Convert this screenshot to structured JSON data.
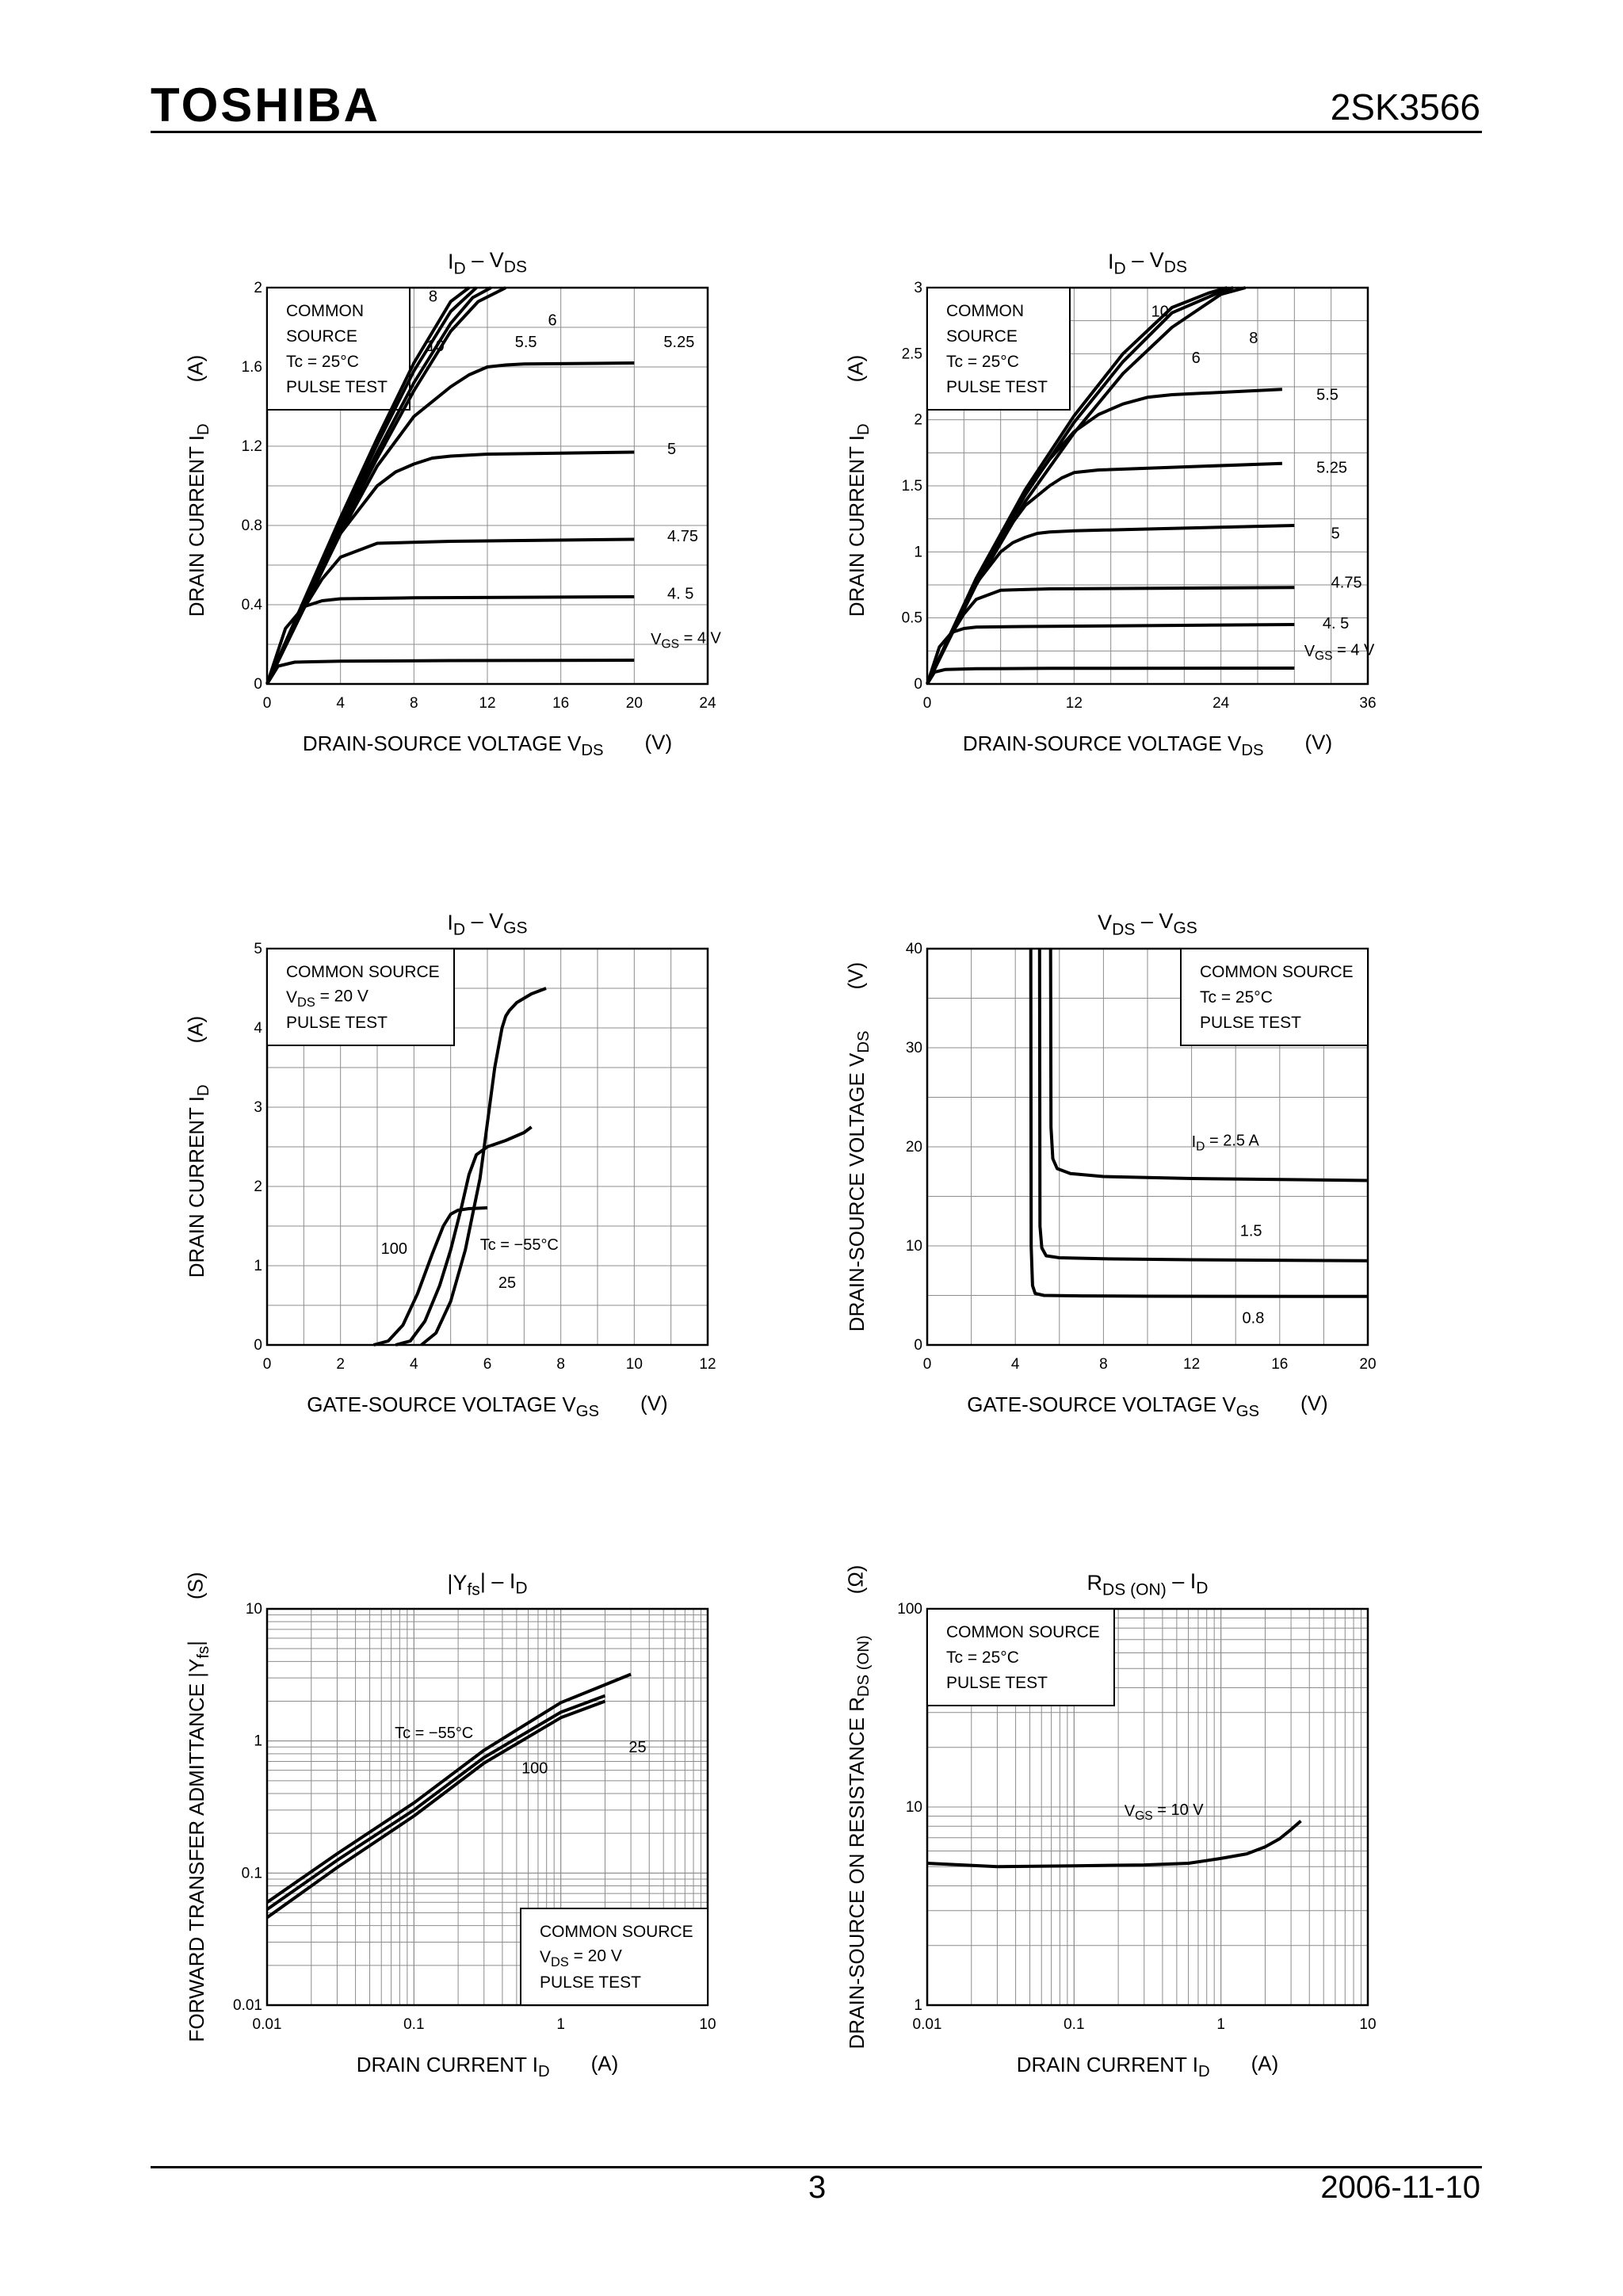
{
  "header": {
    "brand": "TOSHIBA",
    "part_number": "2SK3566"
  },
  "footer": {
    "page_number": "3",
    "date": "2006-11-10"
  },
  "chart_data": [
    {
      "id": "c1",
      "type": "line",
      "title": "I_D – V_DS",
      "xlabel": "DRAIN-SOURCE VOLTAGE V_DS (V)",
      "ylabel": "DRAIN CURRENT I_D (A)",
      "x_scale": "linear",
      "y_scale": "linear",
      "xlim": [
        0,
        24
      ],
      "ylim": [
        0,
        2
      ],
      "x_ticks": [
        0,
        4,
        8,
        12,
        16,
        20,
        24
      ],
      "y_ticks": [
        0,
        0.4,
        0.8,
        1.2,
        1.6,
        2
      ],
      "x_tick_labels": [
        "0",
        "4",
        "8",
        "12",
        "16",
        "20",
        "24"
      ],
      "y_tick_labels": [
        "0",
        "0.4",
        "0.8",
        "1.2",
        "1.6",
        "2"
      ],
      "grid": true,
      "legend_box": {
        "lines": [
          "COMMON",
          "SOURCE",
          "Tc = 25°C",
          "PULSE TEST"
        ],
        "placement": "top-left"
      },
      "series": [
        {
          "label": "V_GS = 4 V",
          "x": [
            0,
            0.6,
            1.5,
            4,
            10,
            20
          ],
          "y": [
            0,
            0.09,
            0.11,
            0.115,
            0.118,
            0.12
          ]
        },
        {
          "label": "4.5",
          "x": [
            0,
            1,
            2,
            3,
            4,
            8,
            20
          ],
          "y": [
            0,
            0.28,
            0.39,
            0.42,
            0.43,
            0.435,
            0.44
          ]
        },
        {
          "label": "4.75",
          "x": [
            0,
            1,
            2,
            3,
            4,
            6,
            10,
            20
          ],
          "y": [
            0,
            0.2,
            0.38,
            0.53,
            0.64,
            0.71,
            0.72,
            0.73
          ]
        },
        {
          "label": "5",
          "x": [
            0,
            2,
            4,
            6,
            7,
            8,
            9,
            10,
            12,
            20
          ],
          "y": [
            0,
            0.38,
            0.76,
            1.0,
            1.07,
            1.11,
            1.14,
            1.15,
            1.16,
            1.17
          ]
        },
        {
          "label": "5.25",
          "x": [
            0,
            2,
            4,
            6,
            8,
            10,
            11,
            12,
            13,
            14,
            20
          ],
          "y": [
            0,
            0.38,
            0.76,
            1.1,
            1.35,
            1.5,
            1.56,
            1.6,
            1.61,
            1.615,
            1.62
          ]
        },
        {
          "label": "5.5",
          "x": [
            0,
            2,
            4,
            6,
            8,
            10,
            11.5,
            13
          ],
          "y": [
            0,
            0.39,
            0.78,
            1.14,
            1.48,
            1.78,
            1.93,
            2.0
          ]
        },
        {
          "label": "6",
          "x": [
            0,
            2,
            4,
            6,
            8,
            10,
            11.2,
            12.2
          ],
          "y": [
            0,
            0.4,
            0.8,
            1.17,
            1.52,
            1.82,
            1.95,
            2.0
          ]
        },
        {
          "label": "8",
          "x": [
            0,
            2,
            4,
            6,
            8,
            10,
            11.4
          ],
          "y": [
            0,
            0.41,
            0.82,
            1.21,
            1.58,
            1.88,
            2.0
          ]
        },
        {
          "label": "10",
          "x": [
            0,
            2,
            4,
            6,
            8,
            10,
            11
          ],
          "y": [
            0,
            0.42,
            0.84,
            1.24,
            1.62,
            1.93,
            2.0
          ]
        }
      ],
      "annotations": [
        {
          "text": "8",
          "x": 8.8,
          "y": 1.93
        },
        {
          "text": "6",
          "x": 15.3,
          "y": 1.81
        },
        {
          "text": "10",
          "x": 8.7,
          "y": 1.68
        },
        {
          "text": "5.5",
          "x": 13.5,
          "y": 1.7
        },
        {
          "text": "5.25",
          "x": 21.6,
          "y": 1.7
        },
        {
          "text": "5",
          "x": 21.8,
          "y": 1.16
        },
        {
          "text": "4.75",
          "x": 21.8,
          "y": 0.72
        },
        {
          "text": "4. 5",
          "x": 21.8,
          "y": 0.43
        },
        {
          "text": "V_GS = 4 V",
          "x": 20.9,
          "y": 0.2
        }
      ]
    },
    {
      "id": "c2",
      "type": "line",
      "title": "I_D – V_DS",
      "xlabel": "DRAIN-SOURCE VOLTAGE V_DS (V)",
      "ylabel": "DRAIN CURRENT I_D (A)",
      "x_scale": "linear",
      "y_scale": "linear",
      "xlim": [
        0,
        36
      ],
      "ylim": [
        0,
        3
      ],
      "x_ticks": [
        0,
        12,
        24,
        36
      ],
      "y_ticks": [
        0,
        0.5,
        1,
        1.5,
        2,
        2.5,
        3
      ],
      "x_tick_labels": [
        "0",
        "12",
        "24",
        "36"
      ],
      "y_tick_labels": [
        "0",
        "0.5",
        "1",
        "1.5",
        "2",
        "2.5",
        "3"
      ],
      "x_grid_step": 3,
      "y_grid_step": 0.25,
      "grid": true,
      "legend_box": {
        "lines": [
          "COMMON",
          "SOURCE",
          "Tc = 25°C",
          "PULSE TEST"
        ],
        "placement": "top-left"
      },
      "series": [
        {
          "label": "V_GS = 4 V",
          "x": [
            0,
            0.6,
            1.5,
            4,
            10,
            30
          ],
          "y": [
            0,
            0.09,
            0.11,
            0.115,
            0.118,
            0.12
          ]
        },
        {
          "label": "4.5",
          "x": [
            0,
            1,
            2,
            3,
            4,
            8,
            30
          ],
          "y": [
            0,
            0.28,
            0.39,
            0.42,
            0.43,
            0.435,
            0.45
          ]
        },
        {
          "label": "4.75",
          "x": [
            0,
            1,
            2,
            3,
            4,
            6,
            10,
            30
          ],
          "y": [
            0,
            0.2,
            0.38,
            0.53,
            0.64,
            0.71,
            0.72,
            0.73
          ]
        },
        {
          "label": "5",
          "x": [
            0,
            2,
            4,
            6,
            7,
            8,
            9,
            10,
            12,
            30
          ],
          "y": [
            0,
            0.38,
            0.76,
            1.0,
            1.07,
            1.11,
            1.14,
            1.15,
            1.16,
            1.2
          ]
        },
        {
          "label": "5.25",
          "x": [
            0,
            2,
            4,
            6,
            8,
            10,
            11,
            12,
            14,
            29
          ],
          "y": [
            0,
            0.38,
            0.76,
            1.1,
            1.35,
            1.5,
            1.56,
            1.6,
            1.62,
            1.67
          ]
        },
        {
          "label": "5.5",
          "x": [
            0,
            2,
            4,
            6,
            8,
            10,
            12,
            14,
            16,
            18,
            20,
            29
          ],
          "y": [
            0,
            0.39,
            0.78,
            1.13,
            1.44,
            1.7,
            1.91,
            2.04,
            2.12,
            2.17,
            2.19,
            2.23
          ]
        },
        {
          "label": "6",
          "x": [
            0,
            4,
            8,
            12,
            16,
            20,
            24,
            26
          ],
          "y": [
            0,
            0.75,
            1.38,
            1.9,
            2.35,
            2.7,
            2.95,
            3.0
          ]
        },
        {
          "label": "8",
          "x": [
            0,
            4,
            8,
            12,
            16,
            20,
            24,
            25
          ],
          "y": [
            0,
            0.78,
            1.43,
            1.98,
            2.44,
            2.81,
            2.97,
            3.0
          ]
        },
        {
          "label": "10",
          "x": [
            0,
            4,
            8,
            12,
            16,
            20,
            23,
            24.5
          ],
          "y": [
            0,
            0.8,
            1.47,
            2.03,
            2.5,
            2.85,
            2.96,
            3.0
          ]
        }
      ],
      "annotations": [
        {
          "text": "10",
          "x": 18.3,
          "y": 2.78
        },
        {
          "text": "8",
          "x": 26.3,
          "y": 2.58
        },
        {
          "text": "6",
          "x": 21.6,
          "y": 2.43
        },
        {
          "text": "5.5",
          "x": 31.8,
          "y": 2.15
        },
        {
          "text": "5.25",
          "x": 31.8,
          "y": 1.6
        },
        {
          "text": "5",
          "x": 33.0,
          "y": 1.1
        },
        {
          "text": "4.75",
          "x": 33.0,
          "y": 0.73
        },
        {
          "text": "4. 5",
          "x": 32.3,
          "y": 0.42
        },
        {
          "text": "V_GS = 4 V",
          "x": 30.8,
          "y": 0.21
        }
      ]
    },
    {
      "id": "c3",
      "type": "line",
      "title": "I_D – V_GS",
      "xlabel": "GATE-SOURCE VOLTAGE V_GS (V)",
      "ylabel": "DRAIN CURRENT I_D (A)",
      "x_scale": "linear",
      "y_scale": "linear",
      "xlim": [
        0,
        12
      ],
      "ylim": [
        0,
        5
      ],
      "x_ticks": [
        0,
        2,
        4,
        6,
        8,
        10,
        12
      ],
      "y_ticks": [
        0,
        1,
        2,
        3,
        4,
        5
      ],
      "x_tick_labels": [
        "0",
        "2",
        "4",
        "6",
        "8",
        "10",
        "12"
      ],
      "y_tick_labels": [
        "0",
        "1",
        "2",
        "3",
        "4",
        "5"
      ],
      "x_grid_step": 1,
      "y_grid_step": 0.5,
      "grid": true,
      "legend_box": {
        "lines": [
          "COMMON SOURCE",
          "V_DS = 20 V",
          "PULSE TEST"
        ],
        "placement": "top-left"
      },
      "series": [
        {
          "label": "100",
          "x": [
            2.9,
            3.3,
            3.7,
            4.1,
            4.5,
            4.8,
            5.0,
            5.2,
            5.5,
            6.0
          ],
          "y": [
            0.0,
            0.05,
            0.25,
            0.65,
            1.15,
            1.5,
            1.65,
            1.7,
            1.72,
            1.73
          ]
        },
        {
          "label": "25",
          "x": [
            3.5,
            3.9,
            4.3,
            4.7,
            5.0,
            5.3,
            5.5,
            5.7,
            6.0,
            6.5,
            7.0,
            7.2
          ],
          "y": [
            0.0,
            0.05,
            0.3,
            0.75,
            1.2,
            1.75,
            2.15,
            2.4,
            2.5,
            2.58,
            2.68,
            2.75
          ]
        },
        {
          "label": "Tc = -55°C",
          "x": [
            4.2,
            4.6,
            5.0,
            5.4,
            5.8,
            6.0,
            6.2,
            6.4,
            6.5,
            6.6,
            6.8,
            7.2,
            7.6
          ],
          "y": [
            0.0,
            0.15,
            0.55,
            1.2,
            2.1,
            2.8,
            3.5,
            4.0,
            4.15,
            4.22,
            4.32,
            4.43,
            4.5
          ]
        }
      ],
      "annotations": [
        {
          "text": "100",
          "x": 3.1,
          "y": 1.15
        },
        {
          "text": "Tc = −55°C",
          "x": 5.8,
          "y": 1.2
        },
        {
          "text": "25",
          "x": 6.3,
          "y": 0.72
        }
      ]
    },
    {
      "id": "c4",
      "type": "line",
      "title": "V_DS – V_GS",
      "xlabel": "GATE-SOURCE VOLTAGE V_GS (V)",
      "ylabel": "DRAIN-SOURCE VOLTAGE V_DS (V)",
      "x_scale": "linear",
      "y_scale": "linear",
      "xlim": [
        0,
        20
      ],
      "ylim": [
        0,
        40
      ],
      "x_ticks": [
        0,
        4,
        8,
        12,
        16,
        20
      ],
      "y_ticks": [
        0,
        10,
        20,
        30,
        40
      ],
      "x_tick_labels": [
        "0",
        "4",
        "8",
        "12",
        "16",
        "20"
      ],
      "y_tick_labels": [
        "0",
        "10",
        "20",
        "30",
        "40"
      ],
      "x_grid_step": 2,
      "y_grid_step": 5,
      "grid": true,
      "legend_box": {
        "lines": [
          "COMMON SOURCE",
          "Tc = 25°C",
          "PULSE TEST"
        ],
        "placement": "top-right"
      },
      "series": [
        {
          "label": "0.8",
          "x": [
            4.7,
            4.72,
            4.78,
            4.9,
            5.3,
            7,
            10,
            20
          ],
          "y": [
            40,
            10,
            6.0,
            5.2,
            5.0,
            4.95,
            4.92,
            4.9
          ]
        },
        {
          "label": "1.5",
          "x": [
            5.1,
            5.12,
            5.2,
            5.4,
            6,
            8,
            12,
            20
          ],
          "y": [
            40,
            12,
            9.8,
            9.0,
            8.8,
            8.7,
            8.6,
            8.5
          ]
        },
        {
          "label": "I_D = 2.5 A",
          "x": [
            5.6,
            5.62,
            5.7,
            5.9,
            6.5,
            8,
            12,
            20
          ],
          "y": [
            40,
            22,
            18.8,
            17.8,
            17.3,
            17.0,
            16.8,
            16.6
          ]
        }
      ],
      "annotations": [
        {
          "text": "I_D = 2.5 A",
          "x": 12.0,
          "y": 20.0
        },
        {
          "text": "1.5",
          "x": 14.2,
          "y": 11.0
        },
        {
          "text": "0.8",
          "x": 14.3,
          "y": 2.2
        }
      ]
    },
    {
      "id": "c5",
      "type": "line",
      "title": "|Y_fs| – I_D",
      "xlabel": "DRAIN CURRENT I_D (A)",
      "ylabel": "FORWARD TRANSFER ADMITTANCE |Y_fs| (S)",
      "x_scale": "log",
      "y_scale": "log",
      "xlim": [
        0.01,
        10
      ],
      "ylim": [
        0.01,
        10
      ],
      "x_ticks": [
        0.01,
        0.1,
        1,
        10
      ],
      "y_ticks": [
        0.01,
        0.1,
        1,
        10
      ],
      "x_tick_labels": [
        "0.01",
        "0.1",
        "1",
        "10"
      ],
      "y_tick_labels": [
        "0.01",
        "0.1",
        "1",
        "10"
      ],
      "grid": true,
      "legend_box": {
        "lines": [
          "COMMON SOURCE",
          "V_DS = 20 V",
          "PULSE TEST"
        ],
        "placement": "bottom-right"
      },
      "series": [
        {
          "label": "Tc = -55°C",
          "x": [
            0.01,
            0.03,
            0.1,
            0.3,
            1,
            3
          ],
          "y": [
            0.06,
            0.14,
            0.34,
            0.85,
            1.95,
            3.2
          ]
        },
        {
          "label": "25",
          "x": [
            0.01,
            0.03,
            0.1,
            0.3,
            1,
            2
          ],
          "y": [
            0.053,
            0.125,
            0.3,
            0.75,
            1.65,
            2.2
          ]
        },
        {
          "label": "100",
          "x": [
            0.01,
            0.03,
            0.1,
            0.3,
            1,
            2
          ],
          "y": [
            0.046,
            0.11,
            0.27,
            0.68,
            1.5,
            2.0
          ]
        }
      ],
      "annotations": [
        {
          "text": "Tc = −55°C",
          "x": 0.074,
          "y": 1.05
        },
        {
          "text": "25",
          "x": 2.9,
          "y": 0.82
        },
        {
          "text": "100",
          "x": 0.54,
          "y": 0.57
        }
      ]
    },
    {
      "id": "c6",
      "type": "line",
      "title": "R_DS (ON) – I_D",
      "xlabel": "DRAIN CURRENT I_D (A)",
      "ylabel": "DRAIN-SOURCE ON RESISTANCE R_DS (ON) (Ω)",
      "x_scale": "log",
      "y_scale": "log",
      "xlim": [
        0.01,
        10
      ],
      "ylim": [
        1,
        100
      ],
      "x_ticks": [
        0.01,
        0.1,
        1,
        10
      ],
      "y_ticks": [
        1,
        10,
        100
      ],
      "x_tick_labels": [
        "0.01",
        "0.1",
        "1",
        "10"
      ],
      "y_tick_labels": [
        "1",
        "10",
        "100"
      ],
      "grid": true,
      "legend_box": {
        "lines": [
          "COMMON SOURCE",
          "Tc = 25°C",
          "PULSE TEST"
        ],
        "placement": "top-left"
      },
      "series": [
        {
          "label": "V_GS = 10 V",
          "x": [
            0.01,
            0.03,
            0.1,
            0.3,
            0.6,
            1,
            1.5,
            2,
            2.5,
            3,
            3.5
          ],
          "y": [
            5.2,
            5.0,
            5.05,
            5.1,
            5.2,
            5.5,
            5.8,
            6.3,
            6.9,
            7.7,
            8.5
          ]
        }
      ],
      "annotations": [
        {
          "text": "V_GS = 10 V",
          "x": 0.22,
          "y": 9.0
        }
      ]
    }
  ]
}
